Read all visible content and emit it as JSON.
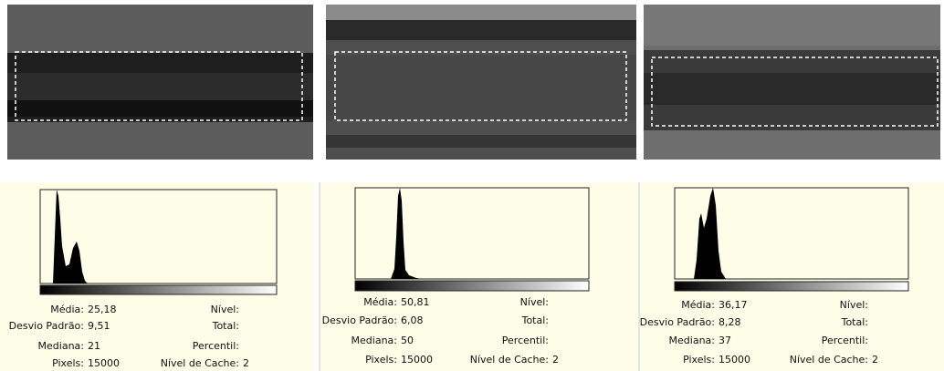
{
  "panels": [
    {
      "rows": [
        {
          "label": "Média:",
          "value": "25,18",
          "right_label": "Nível:"
        },
        {
          "label": "Desvio Padrão:",
          "value": "9,51",
          "right_label": "Total:"
        },
        {
          "label": "Mediana:",
          "value": "21",
          "right_label": "Percentil:"
        },
        {
          "label": "Pixels:",
          "value": "15000",
          "right_label": "Nível de Cache:",
          "right_value": "2"
        }
      ]
    },
    {
      "rows": [
        {
          "label": "Média:",
          "value": "50,81",
          "right_label": "Nível:"
        },
        {
          "label": "Desvio Padrão:",
          "value": "6,08",
          "right_label": "Total:"
        },
        {
          "label": "Mediana:",
          "value": "50",
          "right_label": "Percentil:"
        },
        {
          "label": "Pixels:",
          "value": "15000",
          "right_label": "Nível de Cache:",
          "right_value": "2"
        }
      ]
    },
    {
      "rows": [
        {
          "label": "Média:",
          "value": "36,17",
          "right_label": "Nível:"
        },
        {
          "label": "Desvio Padrão:",
          "value": "8,28",
          "right_label": "Total:"
        },
        {
          "label": "Mediana:",
          "value": "37",
          "right_label": "Percentil:"
        },
        {
          "label": "Pixels:",
          "value": "15000",
          "right_label": "Nível de Cache:",
          "right_value": "2"
        }
      ]
    }
  ]
}
